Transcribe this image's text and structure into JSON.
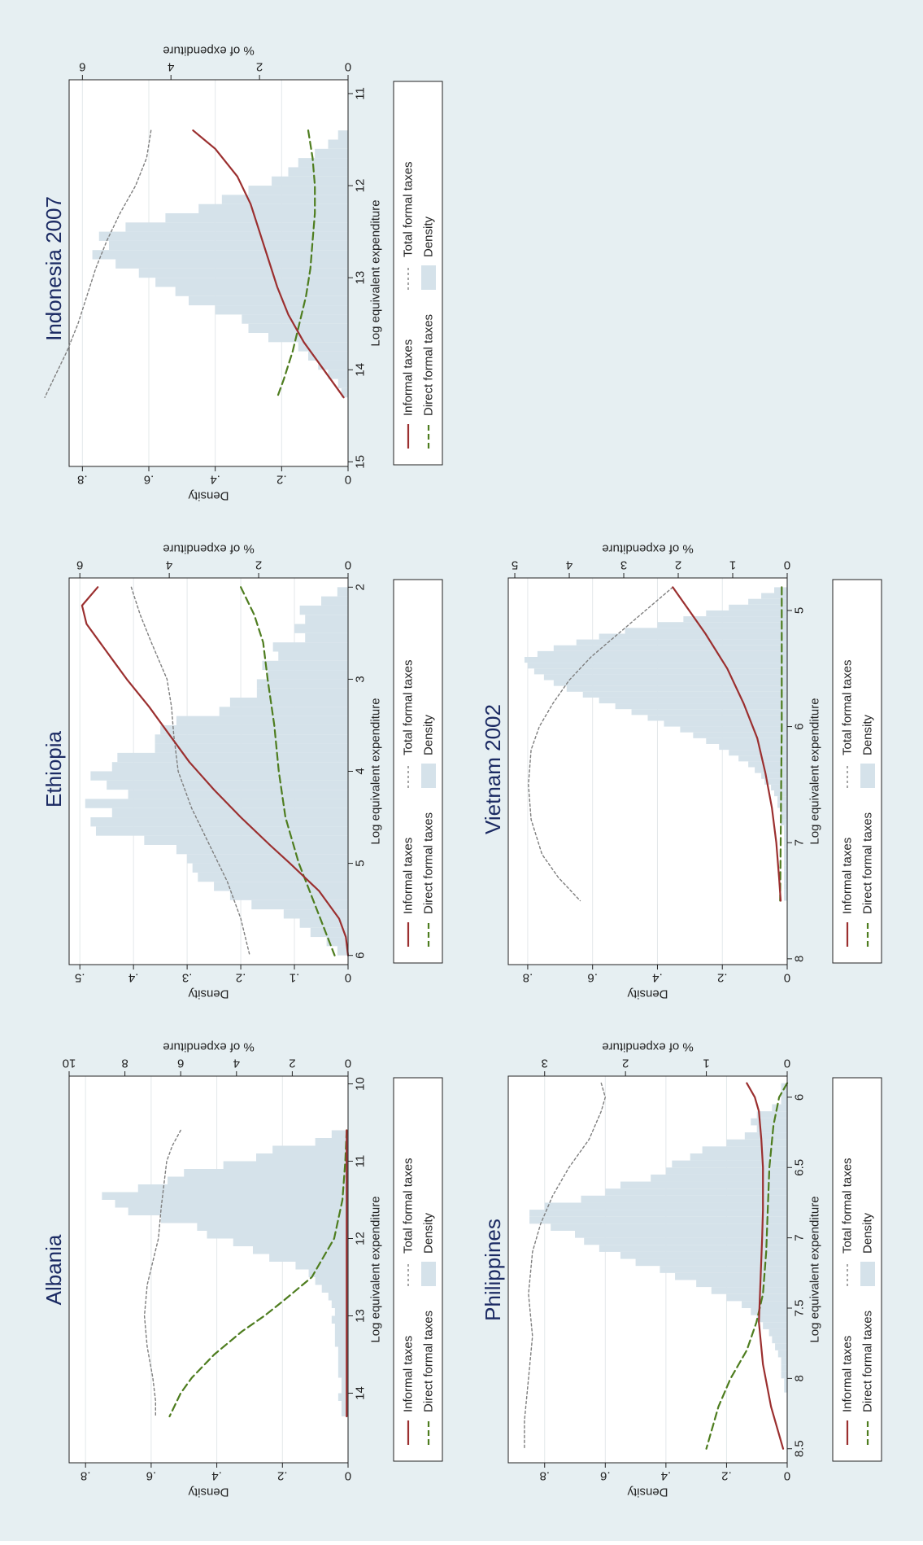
{
  "colors": {
    "figure_bg": "#e6eff2",
    "plot_bg": "#ffffff",
    "density_fill": "#d5e2ea",
    "informal": "#9b2f2f",
    "direct": "#4e7d1f",
    "total": "#7f7f7f",
    "title": "#1b2a63",
    "grid": "#e3e8ea",
    "axis": "#222222"
  },
  "legend": {
    "informal": "Informal taxes",
    "direct": "Direct formal taxes",
    "total": "Total formal taxes",
    "density": "Density"
  },
  "chart_data": [
    {
      "type": "histogram+line",
      "title": "Albania",
      "xlabel": "Log equivalent expenditure",
      "ylabel_left": "Density",
      "ylabel_right": "% of expenditure",
      "xlim": [
        9.9,
        14.9
      ],
      "xticks": [
        10,
        11,
        12,
        13,
        14
      ],
      "ylim_left": [
        0,
        0.85
      ],
      "yticks_left": [
        {
          "v": 0,
          "t": "0"
        },
        {
          "v": 0.2,
          "t": ".2"
        },
        {
          "v": 0.4,
          "t": ".4"
        },
        {
          "v": 0.6,
          "t": ".6"
        },
        {
          "v": 0.8,
          "t": ".8"
        }
      ],
      "ylim_right": [
        0,
        10
      ],
      "yticks_right": [
        {
          "v": 0,
          "t": "0"
        },
        {
          "v": 2,
          "t": "2"
        },
        {
          "v": 4,
          "t": "4"
        },
        {
          "v": 6,
          "t": "6"
        },
        {
          "v": 8,
          "t": "8"
        },
        {
          "v": 10,
          "t": "10"
        }
      ],
      "hist_start": 10.6,
      "hist_width": 0.1,
      "density": [
        0.05,
        0.1,
        0.23,
        0.28,
        0.38,
        0.5,
        0.55,
        0.64,
        0.75,
        0.71,
        0.67,
        0.57,
        0.46,
        0.43,
        0.35,
        0.29,
        0.24,
        0.16,
        0.12,
        0.1,
        0.08,
        0.06,
        0.05,
        0.04,
        0.05,
        0.04,
        0.04,
        0.04,
        0.03,
        0.03,
        0.03,
        0.03,
        0.02,
        0.02,
        0.03,
        0.02,
        0.02
      ],
      "informal": {
        "x": [
          10.6,
          11.5,
          12.5,
          13.5,
          14.3
        ],
        "y": [
          0.05,
          0.05,
          0.05,
          0.05,
          0.05
        ]
      },
      "direct": {
        "x": [
          10.6,
          11.0,
          11.5,
          12.0,
          12.5,
          12.8,
          13.0,
          13.2,
          13.5,
          13.8,
          14.0,
          14.3
        ],
        "y": [
          0.05,
          0.1,
          0.2,
          0.5,
          1.3,
          2.3,
          3.0,
          3.8,
          4.8,
          5.6,
          6.0,
          6.4
        ]
      },
      "total": {
        "x": [
          10.6,
          10.8,
          11.0,
          11.3,
          11.6,
          12.0,
          12.3,
          12.6,
          13.0,
          13.4,
          13.8,
          14.1,
          14.3
        ],
        "y": [
          6.0,
          6.3,
          6.5,
          6.6,
          6.7,
          6.8,
          7.0,
          7.2,
          7.3,
          7.2,
          7.0,
          6.9,
          6.9
        ]
      }
    },
    {
      "type": "histogram+line",
      "title": "Ethiopia",
      "xlabel": "Log equivalent expenditure",
      "ylabel_left": "Density",
      "ylabel_right": "% of expenditure",
      "xlim": [
        1.9,
        6.1
      ],
      "xticks": [
        2,
        3,
        4,
        5,
        6
      ],
      "ylim_left": [
        0,
        0.52
      ],
      "yticks_left": [
        {
          "v": 0,
          "t": "0"
        },
        {
          "v": 0.1,
          "t": ".1"
        },
        {
          "v": 0.2,
          "t": ".2"
        },
        {
          "v": 0.3,
          "t": ".3"
        },
        {
          "v": 0.4,
          "t": ".4"
        },
        {
          "v": 0.5,
          "t": ".5"
        }
      ],
      "ylim_right": [
        0,
        6.24
      ],
      "yticks_right": [
        {
          "v": 0,
          "t": "0"
        },
        {
          "v": 2,
          "t": "2"
        },
        {
          "v": 4,
          "t": "4"
        },
        {
          "v": 6,
          "t": "6"
        }
      ],
      "hist_start": 2.0,
      "hist_width": 0.1,
      "density": [
        0.02,
        0.05,
        0.09,
        0.08,
        0.1,
        0.08,
        0.14,
        0.13,
        0.16,
        0.15,
        0.17,
        0.17,
        0.22,
        0.24,
        0.32,
        0.35,
        0.36,
        0.36,
        0.43,
        0.44,
        0.48,
        0.45,
        0.41,
        0.49,
        0.44,
        0.48,
        0.47,
        0.38,
        0.32,
        0.3,
        0.29,
        0.28,
        0.25,
        0.22,
        0.18,
        0.12,
        0.09,
        0.07,
        0.04,
        0.02
      ],
      "informal": {
        "x": [
          2.0,
          2.2,
          2.4,
          2.6,
          2.8,
          3.0,
          3.3,
          3.6,
          3.9,
          4.2,
          4.5,
          4.8,
          5.0,
          5.3,
          5.6,
          5.8,
          6.0
        ],
        "y": [
          5.6,
          5.95,
          5.85,
          5.55,
          5.25,
          4.95,
          4.45,
          4.0,
          3.55,
          3.0,
          2.4,
          1.75,
          1.3,
          0.65,
          0.2,
          0.05,
          0.0
        ]
      },
      "direct": {
        "x": [
          2.0,
          2.3,
          2.6,
          3.0,
          3.5,
          4.0,
          4.5,
          5.0,
          5.5,
          6.0
        ],
        "y": [
          2.4,
          2.1,
          1.9,
          1.8,
          1.65,
          1.55,
          1.4,
          1.1,
          0.7,
          0.3
        ]
      },
      "total": {
        "x": [
          2.0,
          2.3,
          2.6,
          3.0,
          3.3,
          3.6,
          4.0,
          4.4,
          4.8,
          5.2,
          5.6,
          6.0
        ],
        "y": [
          4.85,
          4.65,
          4.4,
          4.05,
          3.95,
          3.9,
          3.8,
          3.5,
          3.1,
          2.7,
          2.4,
          2.2
        ]
      }
    },
    {
      "type": "histogram+line",
      "title": "Indonesia 2007",
      "xlabel": "Log equivalent expenditure",
      "ylabel_left": "Density",
      "ylabel_right": "% of expenditure",
      "xlim": [
        10.85,
        15.05
      ],
      "xticks": [
        11,
        12,
        13,
        14,
        15
      ],
      "ylim_left": [
        0,
        0.84
      ],
      "yticks_left": [
        {
          "v": 0,
          "t": "0"
        },
        {
          "v": 0.2,
          "t": ".2"
        },
        {
          "v": 0.4,
          "t": ".4"
        },
        {
          "v": 0.6,
          "t": ".6"
        },
        {
          "v": 0.8,
          "t": ".8"
        }
      ],
      "ylim_right": [
        0,
        6.3
      ],
      "yticks_right": [
        {
          "v": 0,
          "t": "0"
        },
        {
          "v": 2,
          "t": "2"
        },
        {
          "v": 4,
          "t": "4"
        },
        {
          "v": 6,
          "t": "6"
        }
      ],
      "hist_start": 11.4,
      "hist_width": 0.1,
      "density": [
        0.03,
        0.06,
        0.1,
        0.15,
        0.18,
        0.23,
        0.3,
        0.38,
        0.45,
        0.55,
        0.67,
        0.75,
        0.72,
        0.77,
        0.7,
        0.63,
        0.58,
        0.52,
        0.48,
        0.4,
        0.32,
        0.3,
        0.24,
        0.15,
        0.12,
        0.09,
        0.06,
        0.03,
        0.02
      ],
      "informal": {
        "x": [
          11.4,
          11.6,
          11.9,
          12.2,
          12.5,
          12.8,
          13.1,
          13.4,
          13.7,
          14.0,
          14.3
        ],
        "y": [
          3.5,
          3.0,
          2.5,
          2.2,
          2.0,
          1.8,
          1.6,
          1.35,
          1.0,
          0.55,
          0.1
        ]
      },
      "direct": {
        "x": [
          11.4,
          11.7,
          12.0,
          12.3,
          12.6,
          12.9,
          13.2,
          13.5,
          13.8,
          14.1,
          14.3
        ],
        "y": [
          0.9,
          0.8,
          0.75,
          0.75,
          0.8,
          0.85,
          0.95,
          1.1,
          1.25,
          1.45,
          1.6
        ]
      },
      "total": {
        "x": [
          11.4,
          11.7,
          12.0,
          12.3,
          12.6,
          12.9,
          13.2,
          13.5,
          13.8,
          14.1,
          14.3
        ],
        "y": [
          4.45,
          4.55,
          4.8,
          5.15,
          5.45,
          5.7,
          5.9,
          6.1,
          6.35,
          6.65,
          6.85
        ]
      }
    },
    {
      "type": "histogram+line",
      "title": "Philippines",
      "xlabel": "Log equivalent expenditure",
      "ylabel_left": "Density",
      "ylabel_right": "% of expenditure",
      "xlim": [
        5.85,
        8.6
      ],
      "xticks": [
        {
          "v": 6,
          "t": "6"
        },
        {
          "v": 6.5,
          "t": "6.5"
        },
        {
          "v": 7,
          "t": "7"
        },
        {
          "v": 7.5,
          "t": "7.5"
        },
        {
          "v": 8,
          "t": "8"
        },
        {
          "v": 8.5,
          "t": "8.5"
        }
      ],
      "ylim_left": [
        0,
        0.92
      ],
      "yticks_left": [
        {
          "v": 0,
          "t": "0"
        },
        {
          "v": 0.2,
          "t": ".2"
        },
        {
          "v": 0.4,
          "t": ".4"
        },
        {
          "v": 0.6,
          "t": ".6"
        },
        {
          "v": 0.8,
          "t": ".8"
        }
      ],
      "ylim_right": [
        0,
        3.45
      ],
      "yticks_right": [
        {
          "v": 0,
          "t": "0"
        },
        {
          "v": 1,
          "t": "1"
        },
        {
          "v": 2,
          "t": "2"
        },
        {
          "v": 3,
          "t": "3"
        }
      ],
      "hist_start": 5.9,
      "hist_width": 0.05,
      "density": [
        0.02,
        0.02,
        0.02,
        0.05,
        0.1,
        0.12,
        0.1,
        0.14,
        0.2,
        0.28,
        0.32,
        0.38,
        0.4,
        0.45,
        0.55,
        0.6,
        0.68,
        0.8,
        0.85,
        0.85,
        0.78,
        0.7,
        0.67,
        0.62,
        0.55,
        0.5,
        0.42,
        0.37,
        0.3,
        0.25,
        0.2,
        0.15,
        0.12,
        0.1,
        0.08,
        0.06,
        0.05,
        0.04,
        0.03,
        0.02,
        0.02,
        0.02,
        0.01,
        0.01
      ],
      "informal": {
        "x": [
          5.9,
          6.0,
          6.1,
          6.3,
          6.5,
          6.8,
          7.0,
          7.3,
          7.6,
          7.9,
          8.2,
          8.5
        ],
        "y": [
          0.5,
          0.4,
          0.35,
          0.32,
          0.3,
          0.3,
          0.31,
          0.33,
          0.35,
          0.3,
          0.2,
          0.05
        ]
      },
      "direct": {
        "x": [
          5.9,
          6.0,
          6.2,
          6.5,
          6.8,
          7.1,
          7.4,
          7.6,
          7.8,
          8.0,
          8.2,
          8.5
        ],
        "y": [
          0.0,
          0.1,
          0.17,
          0.22,
          0.24,
          0.26,
          0.3,
          0.38,
          0.5,
          0.7,
          0.85,
          1.0
        ]
      },
      "total": {
        "x": [
          5.9,
          6.0,
          6.1,
          6.3,
          6.5,
          6.7,
          6.9,
          7.1,
          7.4,
          7.7,
          8.0,
          8.3,
          8.5
        ],
        "y": [
          2.3,
          2.25,
          2.3,
          2.45,
          2.7,
          2.9,
          3.05,
          3.15,
          3.2,
          3.15,
          3.2,
          3.25,
          3.25
        ]
      }
    },
    {
      "type": "histogram+line",
      "title": "Vietnam 2002",
      "xlabel": "Log equivalent expenditure",
      "ylabel_left": "Density",
      "ylabel_right": "% of expenditure",
      "xlim": [
        4.72,
        8.05
      ],
      "xticks": [
        5,
        6,
        7,
        8
      ],
      "ylim_left": [
        0,
        0.86
      ],
      "yticks_left": [
        {
          "v": 0,
          "t": "0"
        },
        {
          "v": 0.2,
          "t": ".2"
        },
        {
          "v": 0.4,
          "t": ".4"
        },
        {
          "v": 0.6,
          "t": ".6"
        },
        {
          "v": 0.8,
          "t": ".8"
        }
      ],
      "ylim_right": [
        0,
        5.12
      ],
      "yticks_right": [
        {
          "v": 0,
          "t": "0"
        },
        {
          "v": 1,
          "t": "1"
        },
        {
          "v": 2,
          "t": "2"
        },
        {
          "v": 3,
          "t": "3"
        },
        {
          "v": 4,
          "t": "4"
        },
        {
          "v": 5,
          "t": "5"
        }
      ],
      "hist_start": 4.8,
      "hist_width": 0.05,
      "density": [
        0.04,
        0.08,
        0.12,
        0.18,
        0.25,
        0.32,
        0.4,
        0.5,
        0.58,
        0.65,
        0.72,
        0.77,
        0.81,
        0.8,
        0.78,
        0.75,
        0.72,
        0.68,
        0.63,
        0.58,
        0.53,
        0.48,
        0.43,
        0.38,
        0.33,
        0.29,
        0.25,
        0.21,
        0.18,
        0.15,
        0.12,
        0.1,
        0.08,
        0.07,
        0.05,
        0.04,
        0.03,
        0.03,
        0.02,
        0.02,
        0.02,
        0.01,
        0.01,
        0.01,
        0.01,
        0.01,
        0.01,
        0.01,
        0.01,
        0.01,
        0.01,
        0.01,
        0.01,
        0.01
      ],
      "informal": {
        "x": [
          4.8,
          5.0,
          5.2,
          5.5,
          5.8,
          6.1,
          6.4,
          6.7,
          7.0,
          7.3,
          7.5
        ],
        "y": [
          2.1,
          1.8,
          1.5,
          1.1,
          0.8,
          0.55,
          0.4,
          0.28,
          0.2,
          0.15,
          0.12
        ]
      },
      "direct": {
        "x": [
          4.8,
          5.5,
          6.0,
          6.5,
          7.0,
          7.5
        ],
        "y": [
          0.1,
          0.1,
          0.1,
          0.11,
          0.12,
          0.13
        ]
      },
      "total": {
        "x": [
          4.8,
          5.0,
          5.2,
          5.4,
          5.6,
          5.8,
          6.0,
          6.2,
          6.5,
          6.8,
          7.1,
          7.3,
          7.5
        ],
        "y": [
          2.1,
          2.6,
          3.1,
          3.6,
          4.0,
          4.3,
          4.55,
          4.7,
          4.75,
          4.7,
          4.5,
          4.2,
          3.8
        ]
      }
    }
  ]
}
